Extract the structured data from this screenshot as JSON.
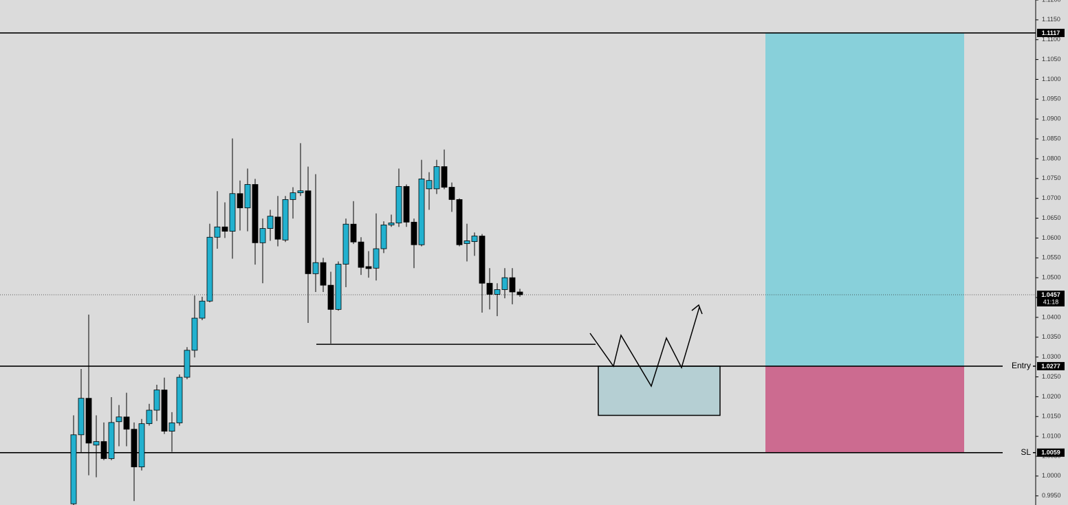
{
  "chart_data": {
    "type": "candlestick",
    "up_color": "#22b1cf",
    "down_color": "#000000",
    "ylim": [
      0.9927,
      1.12
    ],
    "yticks": [
      {
        "value": 0.995,
        "label": "0.9950"
      },
      {
        "value": 1.0,
        "label": "1.0000"
      },
      {
        "value": 1.005,
        "label": "1.0050"
      },
      {
        "value": 1.01,
        "label": "1.0100"
      },
      {
        "value": 1.015,
        "label": "1.0150"
      },
      {
        "value": 1.02,
        "label": "1.0200"
      },
      {
        "value": 1.025,
        "label": "1.0250"
      },
      {
        "value": 1.03,
        "label": "1.0300"
      },
      {
        "value": 1.035,
        "label": "1.0350"
      },
      {
        "value": 1.04,
        "label": "1.0400"
      },
      {
        "value": 1.045,
        "label": "1.0450"
      },
      {
        "value": 1.05,
        "label": "1.0500"
      },
      {
        "value": 1.055,
        "label": "1.0550"
      },
      {
        "value": 1.06,
        "label": "1.0600"
      },
      {
        "value": 1.065,
        "label": "1.0650"
      },
      {
        "value": 1.07,
        "label": "1.0700"
      },
      {
        "value": 1.075,
        "label": "1.0750"
      },
      {
        "value": 1.08,
        "label": "1.0800"
      },
      {
        "value": 1.085,
        "label": "1.0850"
      },
      {
        "value": 1.09,
        "label": "1.0900"
      },
      {
        "value": 1.095,
        "label": "1.0950"
      },
      {
        "value": 1.1,
        "label": "1.1000"
      },
      {
        "value": 1.105,
        "label": "1.1050"
      },
      {
        "value": 1.11,
        "label": "1.1100"
      },
      {
        "value": 1.115,
        "label": "1.1150"
      },
      {
        "value": 1.12,
        "label": "1.1200"
      }
    ],
    "open": [
      0.993,
      1.0104,
      1.0196,
      1.0078,
      1.0087,
      1.0044,
      1.0137,
      1.0149,
      1.0118,
      1.0023,
      1.0132,
      1.0166,
      1.0217,
      1.0113,
      1.0134,
      1.0249,
      1.0317,
      1.0398,
      1.0441,
      1.0602,
      1.0628,
      1.0617,
      1.0712,
      1.0676,
      1.0735,
      1.0588,
      1.0624,
      1.0653,
      1.0595,
      1.0697,
      1.0714,
      1.0719,
      1.051,
      1.0538,
      1.0481,
      1.042,
      1.0534,
      1.0635,
      1.059,
      1.0528,
      1.0524,
      1.0573,
      1.0633,
      1.0638,
      1.073,
      1.064,
      1.0583,
      1.0724,
      1.0724,
      1.078,
      1.0728,
      1.0697,
      1.0586,
      1.0591,
      1.0605,
      1.0486,
      1.0458,
      1.047,
      1.05,
      1.0464
    ],
    "high": [
      1.0153,
      1.027,
      1.0407,
      1.0153,
      1.0135,
      1.0199,
      1.0179,
      1.021,
      1.0135,
      1.0144,
      1.0182,
      1.023,
      1.0248,
      1.0161,
      1.0256,
      1.0325,
      1.0455,
      1.0452,
      1.0636,
      1.0718,
      1.069,
      1.0851,
      1.0745,
      1.0775,
      1.0749,
      1.0649,
      1.0671,
      1.0706,
      1.0706,
      1.0728,
      1.0839,
      1.078,
      1.0761,
      1.055,
      1.0515,
      1.0541,
      1.0649,
      1.0693,
      1.0602,
      1.0567,
      1.0662,
      1.0642,
      1.0659,
      1.0775,
      1.0735,
      1.0649,
      1.0797,
      1.0766,
      1.0797,
      1.0823,
      1.074,
      1.07,
      1.0636,
      1.0614,
      1.061,
      1.0524,
      1.0486,
      1.0524,
      1.0524,
      1.0472
    ],
    "low": [
      0.992,
      1.0058,
      1.0002,
      0.9997,
      1.004,
      1.004,
      1.0075,
      1.0075,
      0.9937,
      1.0014,
      1.0127,
      1.0139,
      1.0106,
      1.0061,
      1.0127,
      1.0244,
      1.0299,
      1.0393,
      1.0438,
      1.0573,
      1.06,
      1.0548,
      1.0619,
      1.0617,
      1.0533,
      1.0486,
      1.0593,
      1.0579,
      1.059,
      1.0649,
      1.0706,
      1.0386,
      1.0464,
      1.0464,
      1.0334,
      1.0417,
      1.0476,
      1.0585,
      1.0507,
      1.05,
      1.0493,
      1.0562,
      1.0628,
      1.0628,
      1.0628,
      1.0524,
      1.0579,
      1.0671,
      1.0711,
      1.0723,
      1.0666,
      1.0579,
      1.0541,
      1.0555,
      1.0412,
      1.042,
      1.0403,
      1.0448,
      1.0433,
      1.0452
    ],
    "close": [
      1.0104,
      1.0196,
      1.0083,
      1.0087,
      1.0044,
      1.0135,
      1.0149,
      1.0118,
      1.0023,
      1.0132,
      1.0166,
      1.0217,
      1.0113,
      1.0134,
      1.0249,
      1.0317,
      1.0398,
      1.0441,
      1.0602,
      1.0628,
      1.0617,
      1.0712,
      1.0676,
      1.0735,
      1.0588,
      1.0624,
      1.0655,
      1.0597,
      1.0697,
      1.0714,
      1.0719,
      1.051,
      1.0538,
      1.0481,
      1.042,
      1.0534,
      1.0635,
      1.059,
      1.0526,
      1.0523,
      1.0573,
      1.0633,
      1.0638,
      1.073,
      1.064,
      1.0583,
      1.0749,
      1.0745,
      1.078,
      1.0728,
      1.0697,
      1.0583,
      1.0593,
      1.0605,
      1.0486,
      1.0458,
      1.047,
      1.05,
      1.0464,
      1.0457
    ],
    "levels": [
      {
        "value": 1.1117
      },
      {
        "name": "Entry",
        "value": 1.0277
      },
      {
        "name": "SL",
        "value": 1.0059
      }
    ],
    "last_price": 1.0457,
    "countdown": "41:18",
    "zone_bottom": 1.0153,
    "support_line": 1.0332,
    "target_color": "#88d0da",
    "stop_color": "#cc6b90",
    "zone_color": "#b5cfd3"
  }
}
